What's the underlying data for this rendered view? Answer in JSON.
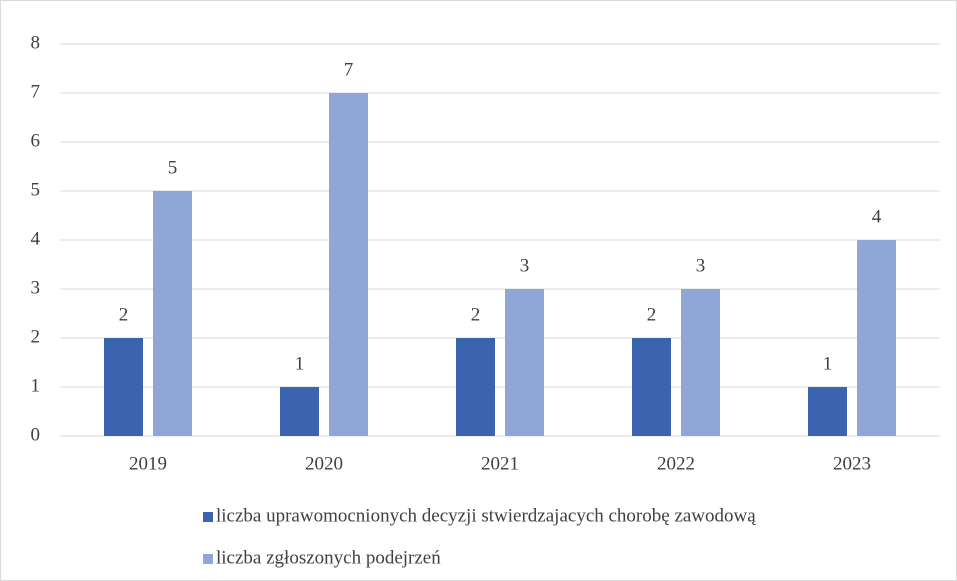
{
  "chart_data": {
    "type": "bar",
    "categories": [
      "2019",
      "2020",
      "2021",
      "2022",
      "2023"
    ],
    "series": [
      {
        "name": "liczba uprawomocnionych decyzji stwierdzajacych chorobę zawodową",
        "color": "#3c64ae",
        "values": [
          2,
          1,
          2,
          2,
          1
        ]
      },
      {
        "name": "liczba zgłoszonych podejrzeń",
        "color": "#8fa6d7",
        "values": [
          5,
          7,
          3,
          3,
          4
        ]
      }
    ],
    "ylim": [
      0,
      8
    ],
    "yticks": [
      0,
      1,
      2,
      3,
      4,
      5,
      6,
      7,
      8
    ],
    "grid": true,
    "legend": "bottom"
  }
}
